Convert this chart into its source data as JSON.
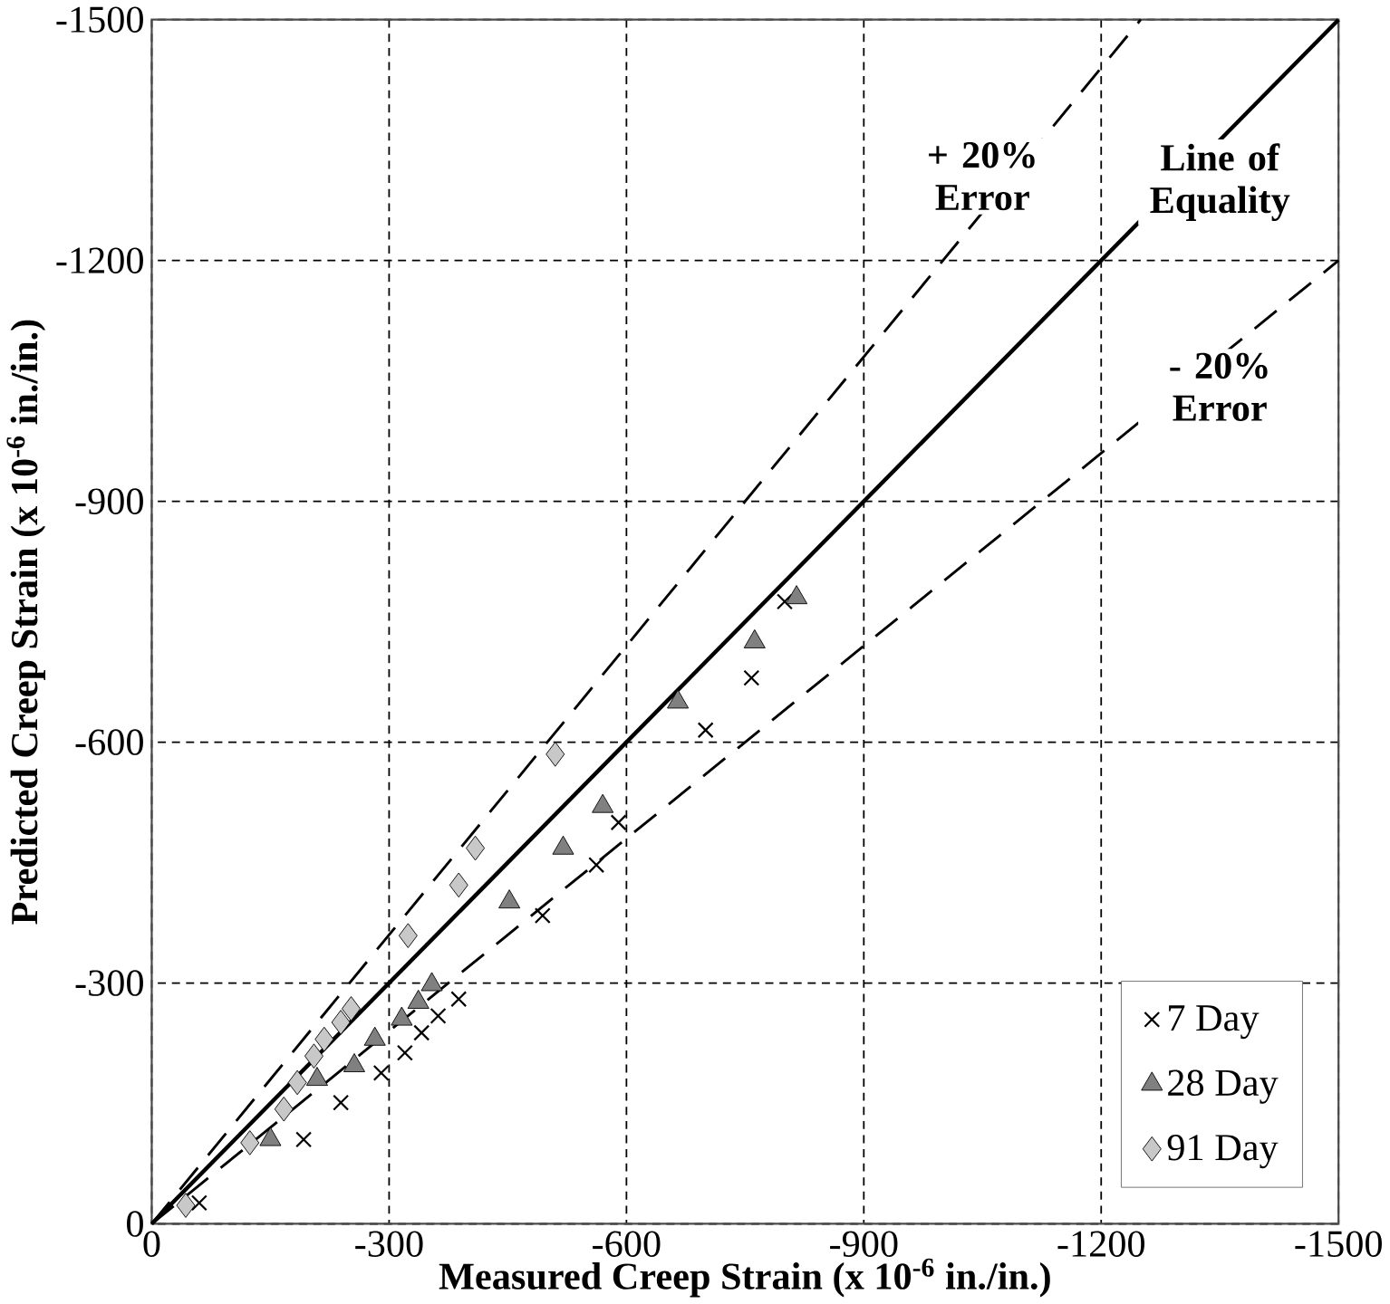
{
  "chart_data": {
    "type": "scatter",
    "xlabel": "Measured Creep Strain (x 10$^{-6}$ in./in.)",
    "ylabel": "Predicted Creep Strain (x 10$^{-6}$ in./in.)",
    "xlim": [
      0,
      -1500
    ],
    "ylim": [
      0,
      -1500
    ],
    "xticks": [
      0,
      -300,
      -600,
      -900,
      -1200,
      -1500
    ],
    "yticks": [
      0,
      -300,
      -600,
      -900,
      -1200,
      -1500
    ],
    "grid": true,
    "legend": "bottom right",
    "series": [
      {
        "name": "7 Day",
        "marker": "cross",
        "color": "#000000",
        "x": [
          -60,
          -192,
          -239,
          -290,
          -320,
          -341,
          -362,
          -388,
          -494,
          -562,
          -590,
          -700,
          -758,
          -800
        ],
        "values": [
          -26,
          -105,
          -151,
          -188,
          -213,
          -238,
          -259,
          -280,
          -384,
          -447,
          -500,
          -615,
          -680,
          -775
        ]
      },
      {
        "name": "28 Day",
        "marker": "triangle",
        "color": "#808080",
        "x": [
          -150,
          -209,
          -256,
          -282,
          -316,
          -337,
          -354,
          -452,
          -520,
          -570,
          -665,
          -762,
          -815
        ],
        "values": [
          -105,
          -180,
          -197,
          -230,
          -255,
          -276,
          -298,
          -401,
          -468,
          -520,
          -650,
          -725,
          -780
        ]
      },
      {
        "name": "91 Day",
        "marker": "diamond",
        "color": "#c8c8c8",
        "x": [
          -43,
          -124,
          -167,
          -184,
          -205,
          -218,
          -239,
          -252,
          -324,
          -388,
          -409,
          -510
        ],
        "values": [
          -23,
          -101,
          -143,
          -176,
          -209,
          -230,
          -251,
          -268,
          -359,
          -422,
          -468,
          -585
        ]
      },
      {
        "type": "line",
        "line_style": "solid",
        "marker": "none",
        "color": "#000000",
        "x": [
          0,
          -1500
        ],
        "values": [
          0,
          -1500
        ]
      },
      {
        "type": "line",
        "line_style": "dashed",
        "marker": "none",
        "color": "#000000",
        "x": [
          0,
          -1250
        ],
        "values": [
          0,
          -1500
        ]
      },
      {
        "type": "line",
        "line_style": "dashed",
        "marker": "none",
        "color": "#000000",
        "x": [
          0,
          -1500
        ],
        "values": [
          0,
          -1200
        ]
      }
    ],
    "annotations": [
      "+ 20% Error",
      "Line of Equality",
      "- 20% Error"
    ]
  }
}
